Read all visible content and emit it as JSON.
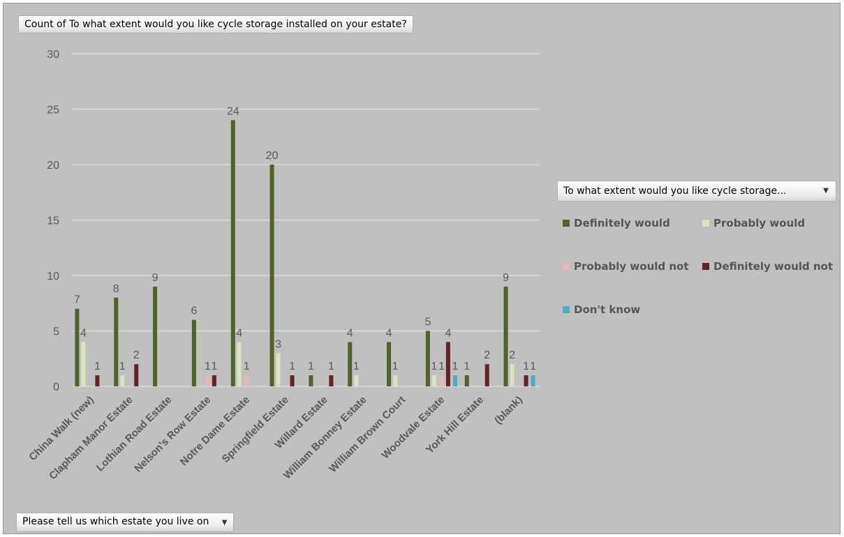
{
  "title_field": "Count of To what extent would you like cycle storage installed on your estate?",
  "legend_field": "To what extent would you like cycle storage...",
  "row_field": "Please tell us which estate you live on",
  "colors": {
    "background": "#c0c0c0",
    "grid": "#e6e6e6",
    "definitely_would": "#4f6228",
    "probably_would": "#d7e4bd",
    "probably_would_not": "#e6b9b8",
    "definitely_would_not": "#632523",
    "dont_know": "#4bacc6"
  },
  "chart_data": {
    "type": "bar",
    "title": "Count of To what extent would you like cycle storage installed on your estate?",
    "ylim": [
      0,
      30
    ],
    "yticks": [
      0,
      5,
      10,
      15,
      20,
      25,
      30
    ],
    "grid": true,
    "legend_placement": "right",
    "categories": [
      "China Walk (new)",
      "Clapham Manor Estate",
      "Lothian Road Estate",
      "Nelson's Row Estate",
      "Notre Dame Estate",
      "Springfield Estate",
      "Willard Estate",
      "William Bonney Estate",
      "William Brown Court",
      "Woodvale Estate",
      "York Hill Estate",
      "(blank)"
    ],
    "series": [
      {
        "name": "Definitely would",
        "color": "#4f6228",
        "values": [
          7,
          8,
          9,
          6,
          24,
          20,
          1,
          4,
          4,
          5,
          1,
          9
        ]
      },
      {
        "name": "Probably would",
        "color": "#d7e4bd",
        "values": [
          4,
          1,
          null,
          null,
          4,
          3,
          null,
          1,
          1,
          1,
          null,
          2
        ]
      },
      {
        "name": "Probably would not",
        "color": "#e6b9b8",
        "values": [
          null,
          null,
          null,
          1,
          1,
          null,
          null,
          null,
          null,
          1,
          null,
          null
        ]
      },
      {
        "name": "Definitely would not",
        "color": "#632523",
        "values": [
          1,
          2,
          null,
          1,
          null,
          1,
          1,
          null,
          null,
          4,
          2,
          1
        ]
      },
      {
        "name": "Don't know",
        "color": "#4bacc6",
        "values": [
          null,
          null,
          null,
          null,
          null,
          null,
          null,
          null,
          null,
          1,
          null,
          1
        ]
      }
    ]
  }
}
